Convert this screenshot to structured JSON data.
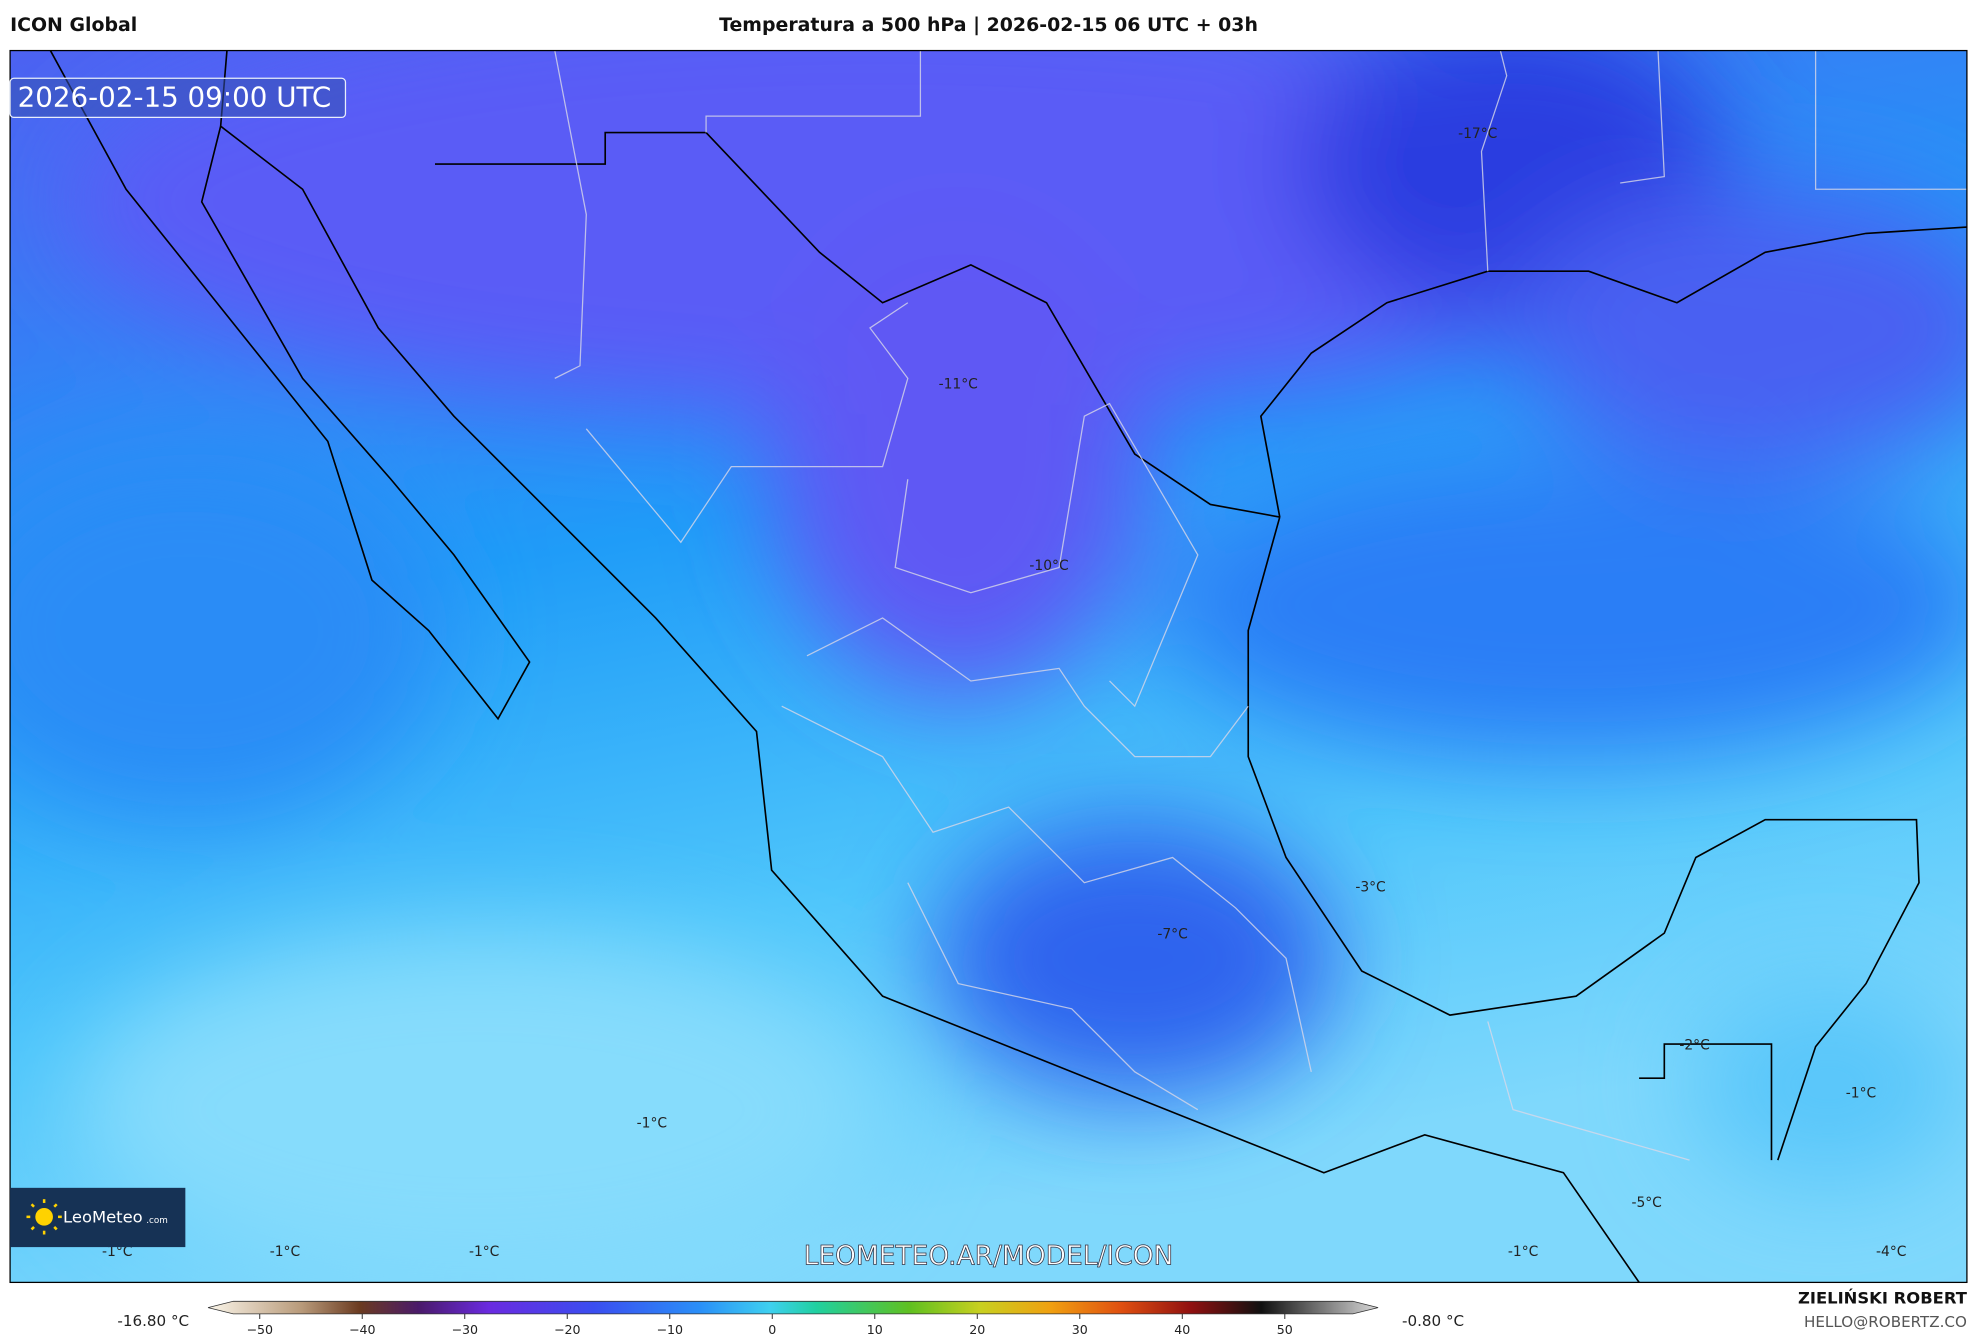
{
  "header": {
    "model": "ICON Global",
    "title": "Temperatura a 500 hPa | 2026-02-15 06 UTC + 03h"
  },
  "map": {
    "timestamp": "2026-02-15 09:00 UTC",
    "labels": [
      "-17°C",
      "-11°C",
      "-10°C",
      "-3°C",
      "-7°C",
      "-2°C",
      "-1°C",
      "-1°C",
      "-1°C",
      "-1°C",
      "-1°C",
      "-1°C",
      "-5°C",
      "-4°C"
    ],
    "watermark": "LEOMETEO.AR/MODEL/ICON",
    "logo": {
      "name": "LeoMeteo",
      "suffix": ".com"
    }
  },
  "colorbar": {
    "min_label": "-16.80 °C",
    "max_label": "-0.80 °C",
    "ticks": [
      {
        "value": -50,
        "label": "−50"
      },
      {
        "value": -40,
        "label": "−40"
      },
      {
        "value": -30,
        "label": "−30"
      },
      {
        "value": -20,
        "label": "−20"
      },
      {
        "value": -10,
        "label": "−10"
      },
      0,
      10,
      20,
      30,
      40,
      50
    ]
  },
  "footer": {
    "author": "ZIELIŃSKI ROBERT",
    "email": "HELLO@ROBERTZ.CO"
  }
}
